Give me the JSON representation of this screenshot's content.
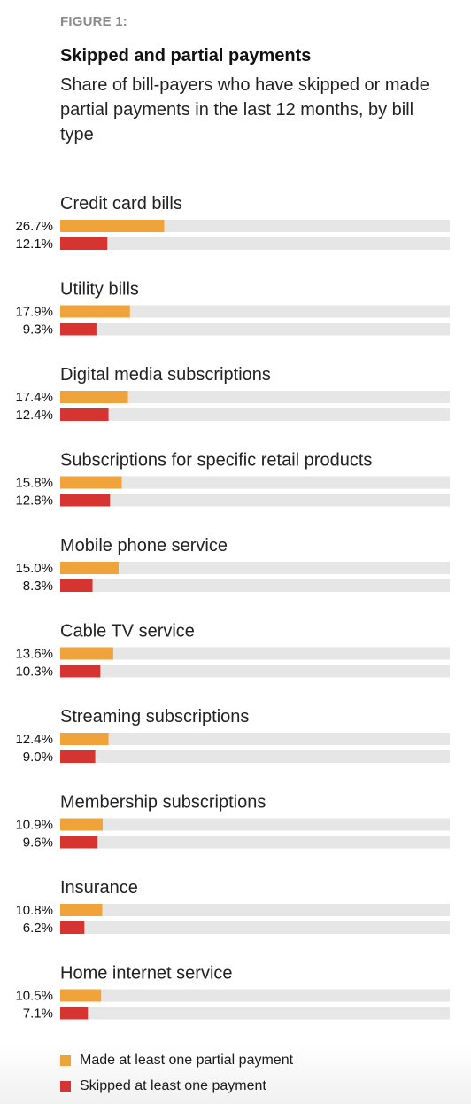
{
  "figure_label": "FIGURE 1:",
  "chart_data": {
    "type": "bar",
    "orientation": "horizontal",
    "title": "Skipped and partial payments",
    "subtitle": "Share of bill-payers who have skipped or made partial payments in the last 12 months, by bill type",
    "categories": [
      "Credit card bills",
      "Utility bills",
      "Digital media subscriptions",
      "Subscriptions for specific retail products",
      "Mobile phone service",
      "Cable TV service",
      "Streaming subscriptions",
      "Membership subscriptions",
      "Insurance",
      "Home internet service"
    ],
    "series": [
      {
        "name": "Made at least one partial payment",
        "color": "#f0a33a",
        "values": [
          26.7,
          17.9,
          17.4,
          15.8,
          15.0,
          13.6,
          12.4,
          10.9,
          10.8,
          10.5
        ],
        "labels": [
          "26.7%",
          "17.9%",
          "17.4%",
          "15.8%",
          "15.0%",
          "13.6%",
          "12.4%",
          "10.9%",
          "10.8%",
          "10.5%"
        ]
      },
      {
        "name": "Skipped at least one payment",
        "color": "#d63430",
        "values": [
          12.1,
          9.3,
          12.4,
          12.8,
          8.3,
          10.3,
          9.0,
          9.6,
          6.2,
          7.1
        ],
        "labels": [
          "12.1%",
          "9.3%",
          "12.4%",
          "12.8%",
          "8.3%",
          "10.3%",
          "9.0%",
          "9.6%",
          "6.2%",
          "7.1%"
        ]
      }
    ],
    "xlim": [
      0,
      100
    ],
    "track_color": "#e6e6e6",
    "grid": false,
    "legend_position": "bottom-left"
  }
}
